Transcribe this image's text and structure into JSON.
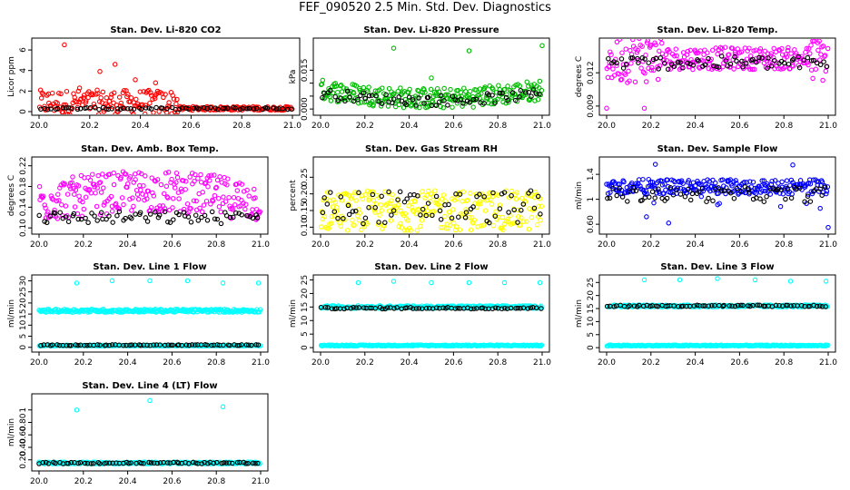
{
  "title": "FEF_090520  2.5 Min. Std. Dev. Diagnostics",
  "chart_data": [
    {
      "type": "scatter",
      "title": "Stan. Dev. Li-820 CO2",
      "ylabel": "Licor ppm",
      "xlim": [
        20.0,
        21.0
      ],
      "ylim": [
        0,
        6.8
      ],
      "yticks": [
        0,
        2,
        4,
        6
      ],
      "xticks": [
        "20.0",
        "20.2",
        "20.4",
        "20.6",
        "20.8",
        "21.0"
      ],
      "series": [
        {
          "color": "#ff0000",
          "base": 0.9,
          "spread": 1.2,
          "decay": true,
          "outliers": [
            [
              20.1,
              6.5
            ],
            [
              20.3,
              4.6
            ],
            [
              20.24,
              3.9
            ],
            [
              20.38,
              3.1
            ],
            [
              20.46,
              2.8
            ],
            [
              20.16,
              2.3
            ]
          ]
        },
        {
          "color": "#000000",
          "base": 0.3,
          "spread": 0.1
        }
      ]
    },
    {
      "type": "scatter",
      "title": "Stan. Dev. Li-820 Pressure",
      "ylabel": "kPa",
      "xlim": [
        20.0,
        21.0
      ],
      "ylim": [
        -0.001,
        0.026
      ],
      "yticks": [
        0.0,
        0.005,
        0.01,
        0.015
      ],
      "ytick_labels": [
        "0.000",
        "",
        "",
        "0.015"
      ],
      "xticks": [
        "20.0",
        "20.2",
        "20.4",
        "20.6",
        "20.8",
        "21.0"
      ],
      "series": [
        {
          "color": "#00bb00",
          "base": 0.0075,
          "spread": 0.004,
          "dip": true,
          "outliers": [
            [
              20.33,
              0.0235
            ],
            [
              20.67,
              0.0225
            ],
            [
              21.0,
              0.0245
            ],
            [
              20.5,
              0.012
            ]
          ]
        },
        {
          "color": "#000000",
          "base": 0.006,
          "spread": 0.002,
          "dip": true
        }
      ]
    },
    {
      "type": "scatter",
      "title": "Stan. Dev. Li-820 Temp.",
      "ylabel": "degrees C",
      "xlim": [
        20.0,
        21.0
      ],
      "ylim": [
        0.0085,
        0.0148
      ],
      "yticks": [
        0.009,
        0.012
      ],
      "xticks": [
        "20.0",
        "20.2",
        "20.4",
        "20.6",
        "20.8",
        "21.0"
      ],
      "series": [
        {
          "color": "#ff00ff",
          "base": 0.0133,
          "spread": 0.001,
          "noisyEnds": true,
          "outliers": [
            [
              20.0,
              0.0088
            ],
            [
              20.17,
              0.0088
            ],
            [
              20.2,
              0.0145
            ]
          ]
        },
        {
          "color": "#000000",
          "base": 0.0129,
          "spread": 0.0006
        }
      ]
    },
    {
      "type": "scatter",
      "title": "Stan. Dev. Amb. Box Temp.",
      "ylabel": "degrees C",
      "xlim": [
        20.0,
        21.0
      ],
      "ylim": [
        0.095,
        0.23
      ],
      "yticks": [
        0.1,
        0.14,
        0.18,
        0.22
      ],
      "xticks": [
        "20.0",
        "20.2",
        "20.4",
        "20.6",
        "20.8",
        "21.0"
      ],
      "series": [
        {
          "color": "#ff00ff",
          "base": 0.15,
          "spread": 0.04,
          "hump": true
        },
        {
          "color": "#000000",
          "base": 0.12,
          "spread": 0.012
        }
      ]
    },
    {
      "type": "scatter",
      "title": "Stan. Dev. Gas Stream RH",
      "ylabel": "percent",
      "xlim": [
        20.0,
        21.0
      ],
      "ylim": [
        0.09,
        0.3
      ],
      "yticks": [
        0.1,
        0.15,
        0.2,
        0.25
      ],
      "xticks": [
        "20.0",
        "20.2",
        "20.4",
        "20.6",
        "20.8",
        "21.0"
      ],
      "series": [
        {
          "color": "#ffff00",
          "base": 0.15,
          "spread": 0.06
        },
        {
          "color": "#000000",
          "base": 0.16,
          "spread": 0.05
        }
      ]
    },
    {
      "type": "scatter",
      "title": "Stan. Dev. Sample Flow",
      "ylabel": "ml/min",
      "xlim": [
        20.0,
        21.0
      ],
      "ylim": [
        0.5,
        1.62
      ],
      "yticks": [
        0.6,
        1.0,
        1.4
      ],
      "xticks": [
        "20.0",
        "20.2",
        "20.4",
        "20.6",
        "20.8",
        "21.0"
      ],
      "series": [
        {
          "color": "#0000ff",
          "base": 1.2,
          "spread": 0.12,
          "scatterLow": true,
          "outliers": [
            [
              20.22,
              1.56
            ],
            [
              20.84,
              1.55
            ],
            [
              20.28,
              0.62
            ],
            [
              21.0,
              0.55
            ],
            [
              20.18,
              0.72
            ]
          ]
        },
        {
          "color": "#000000",
          "base": 1.08,
          "spread": 0.12
        }
      ]
    },
    {
      "type": "scatter",
      "title": "Stan. Dev. Line 1 Flow",
      "ylabel": "ml/min",
      "xlim": [
        20.0,
        21.0
      ],
      "ylim": [
        -0.5,
        31
      ],
      "yticks": [
        0,
        5,
        10,
        15,
        20,
        25,
        30
      ],
      "xticks": [
        "20.0",
        "20.2",
        "20.4",
        "20.6",
        "20.8",
        "21.0"
      ],
      "series": [
        {
          "color": "#00ffff",
          "base": 16.5,
          "spread": 0.7,
          "outliers": [
            [
              20.17,
              29
            ],
            [
              20.33,
              30
            ],
            [
              20.5,
              30
            ],
            [
              20.67,
              30
            ],
            [
              20.83,
              29
            ],
            [
              20.99,
              29
            ]
          ]
        },
        {
          "color": "#00ffff",
          "base": 0.8,
          "spread": 0.2
        },
        {
          "color": "#000000",
          "base": 1.0,
          "spread": 0.2
        }
      ]
    },
    {
      "type": "scatter",
      "title": "Stan. Dev. Line 2 Flow",
      "ylabel": "ml/min",
      "xlim": [
        20.0,
        21.0
      ],
      "ylim": [
        -0.3,
        25.5
      ],
      "yticks": [
        0,
        5,
        10,
        15,
        20,
        25
      ],
      "xticks": [
        "20.0",
        "20.2",
        "20.4",
        "20.6",
        "20.8",
        "21.0"
      ],
      "series": [
        {
          "color": "#00ffff",
          "base": 15.0,
          "spread": 0.5,
          "outliers": [
            [
              20.17,
              24
            ],
            [
              20.33,
              24.5
            ],
            [
              20.5,
              24
            ],
            [
              20.67,
              24
            ],
            [
              20.83,
              24
            ],
            [
              20.99,
              24
            ]
          ]
        },
        {
          "color": "#00ffff",
          "base": 0.8,
          "spread": 0.2
        },
        {
          "color": "#000000",
          "base": 14.6,
          "spread": 0.3
        }
      ]
    },
    {
      "type": "scatter",
      "title": "Stan. Dev. Line 3 Flow",
      "ylabel": "ml/min",
      "xlim": [
        20.0,
        21.0
      ],
      "ylim": [
        -0.3,
        26.5
      ],
      "yticks": [
        0,
        5,
        10,
        15,
        20,
        25
      ],
      "xticks": [
        "20.0",
        "20.2",
        "20.4",
        "20.6",
        "20.8",
        "21.0"
      ],
      "series": [
        {
          "color": "#00ffff",
          "base": 16.0,
          "spread": 0.4,
          "outliers": [
            [
              20.17,
              26
            ],
            [
              20.33,
              26
            ],
            [
              20.5,
              26.5
            ],
            [
              20.67,
              26
            ],
            [
              20.83,
              25.5
            ],
            [
              20.99,
              25.5
            ]
          ]
        },
        {
          "color": "#00ffff",
          "base": 0.8,
          "spread": 0.2
        },
        {
          "color": "#000000",
          "base": 16.0,
          "spread": 0.3
        }
      ]
    },
    {
      "type": "scatter",
      "title": "Stan. Dev. Line 4 (LT) Flow",
      "ylabel": "ml/min",
      "xlim": [
        20.0,
        21.0
      ],
      "ylim": [
        0.08,
        1.2
      ],
      "yticks": [
        0.2,
        0.4,
        0.6,
        0.8,
        1.0
      ],
      "xticks": [
        "20.0",
        "20.2",
        "20.4",
        "20.6",
        "20.8",
        "21.0"
      ],
      "series": [
        {
          "color": "#00ffff",
          "base": 0.15,
          "spread": 0.015,
          "outliers": [
            [
              20.17,
              1.0
            ],
            [
              20.5,
              1.15
            ],
            [
              20.83,
              1.05
            ]
          ]
        },
        {
          "color": "#000000",
          "base": 0.15,
          "spread": 0.012
        }
      ]
    }
  ]
}
